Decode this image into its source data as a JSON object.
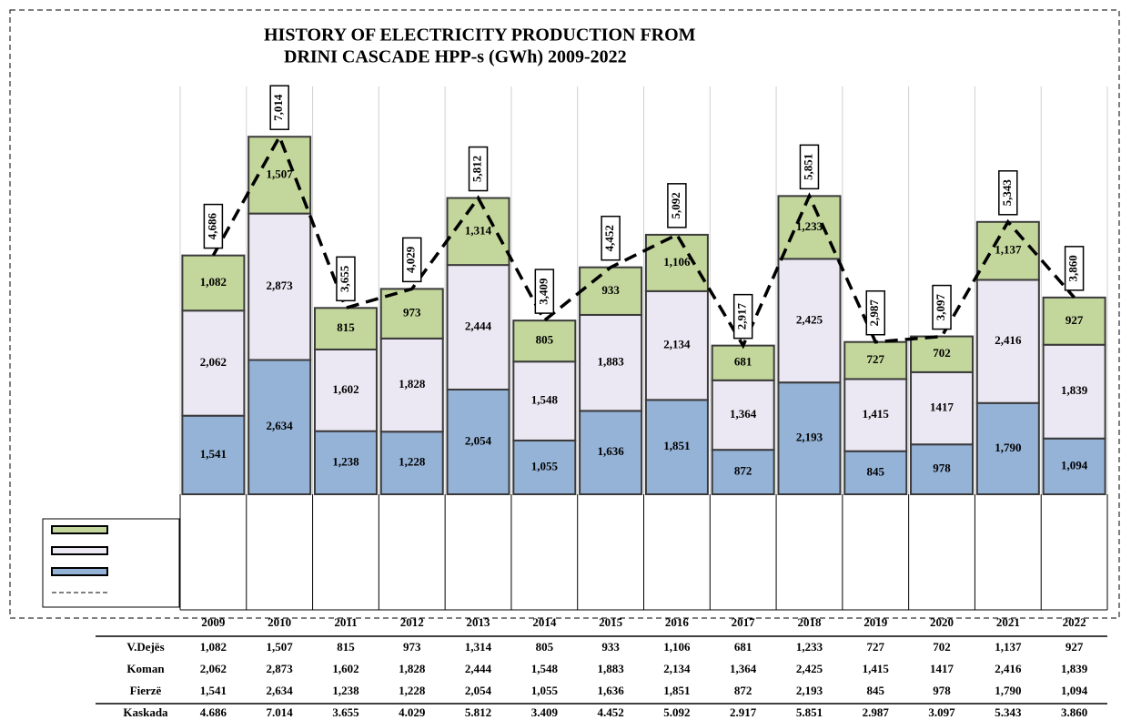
{
  "chart_data": {
    "type": "bar",
    "title": [
      "HISTORY OF ELECTRICITY PRODUCTION FROM",
      "DRINI CASCADE HPP-s (GWh) 2009-2022"
    ],
    "categories": [
      "2009",
      "2010",
      "2011",
      "2012",
      "2013",
      "2014",
      "2015",
      "2016",
      "2017",
      "2018",
      "2019",
      "2020",
      "2021",
      "2022"
    ],
    "stacked": true,
    "ylim": [
      0,
      8000
    ],
    "grid": true,
    "series": [
      {
        "name": "V.Dejës",
        "color": "#c3d69b",
        "values": [
          1082,
          1507,
          815,
          973,
          1314,
          805,
          933,
          1106,
          681,
          1233,
          727,
          702,
          1137,
          927
        ],
        "value_labels": [
          "1,082",
          "1,507",
          "815",
          "973",
          "1,314",
          "805",
          "933",
          "1,106",
          "681",
          "1,233",
          "727",
          "702",
          "1,137",
          "927"
        ]
      },
      {
        "name": "Koman",
        "color": "#ece8f3",
        "values": [
          2062,
          2873,
          1602,
          1828,
          2444,
          1548,
          1883,
          2134,
          1364,
          2425,
          1415,
          1417,
          2416,
          1839
        ],
        "value_labels": [
          "2,062",
          "2,873",
          "1,602",
          "1,828",
          "2,444",
          "1,548",
          "1,883",
          "2,134",
          "1,364",
          "2,425",
          "1,415",
          "1417",
          "2,416",
          "1,839"
        ]
      },
      {
        "name": "Fierzë",
        "color": "#95b3d7",
        "values": [
          1541,
          2634,
          1238,
          1228,
          2054,
          1055,
          1636,
          1851,
          872,
          2193,
          845,
          978,
          1790,
          1094
        ],
        "value_labels": [
          "1,541",
          "2,634",
          "1,238",
          "1,228",
          "2,054",
          "1,055",
          "1,636",
          "1,851",
          "872",
          "2,193",
          "845",
          "978",
          "1,790",
          "1,094"
        ]
      },
      {
        "name": "Kaskada",
        "type": "line",
        "color": "#000000",
        "values": [
          4686,
          7014,
          3655,
          4029,
          5812,
          3409,
          4452,
          5092,
          2917,
          5851,
          2987,
          3097,
          5343,
          3860
        ],
        "value_labels": [
          "4,686",
          "7,014",
          "3,655",
          "4,029",
          "5,812",
          "3,409",
          "4,452",
          "5,092",
          "2,917",
          "5,851",
          "2,987",
          "3,097",
          "5,343",
          "3,860"
        ],
        "table_labels": [
          "4.686",
          "7.014",
          "3.655",
          "4.029",
          "5.812",
          "3.409",
          "4.452",
          "5.092",
          "2.917",
          "5.851",
          "2.987",
          "3.097",
          "5.343",
          "3.860"
        ]
      }
    ]
  }
}
